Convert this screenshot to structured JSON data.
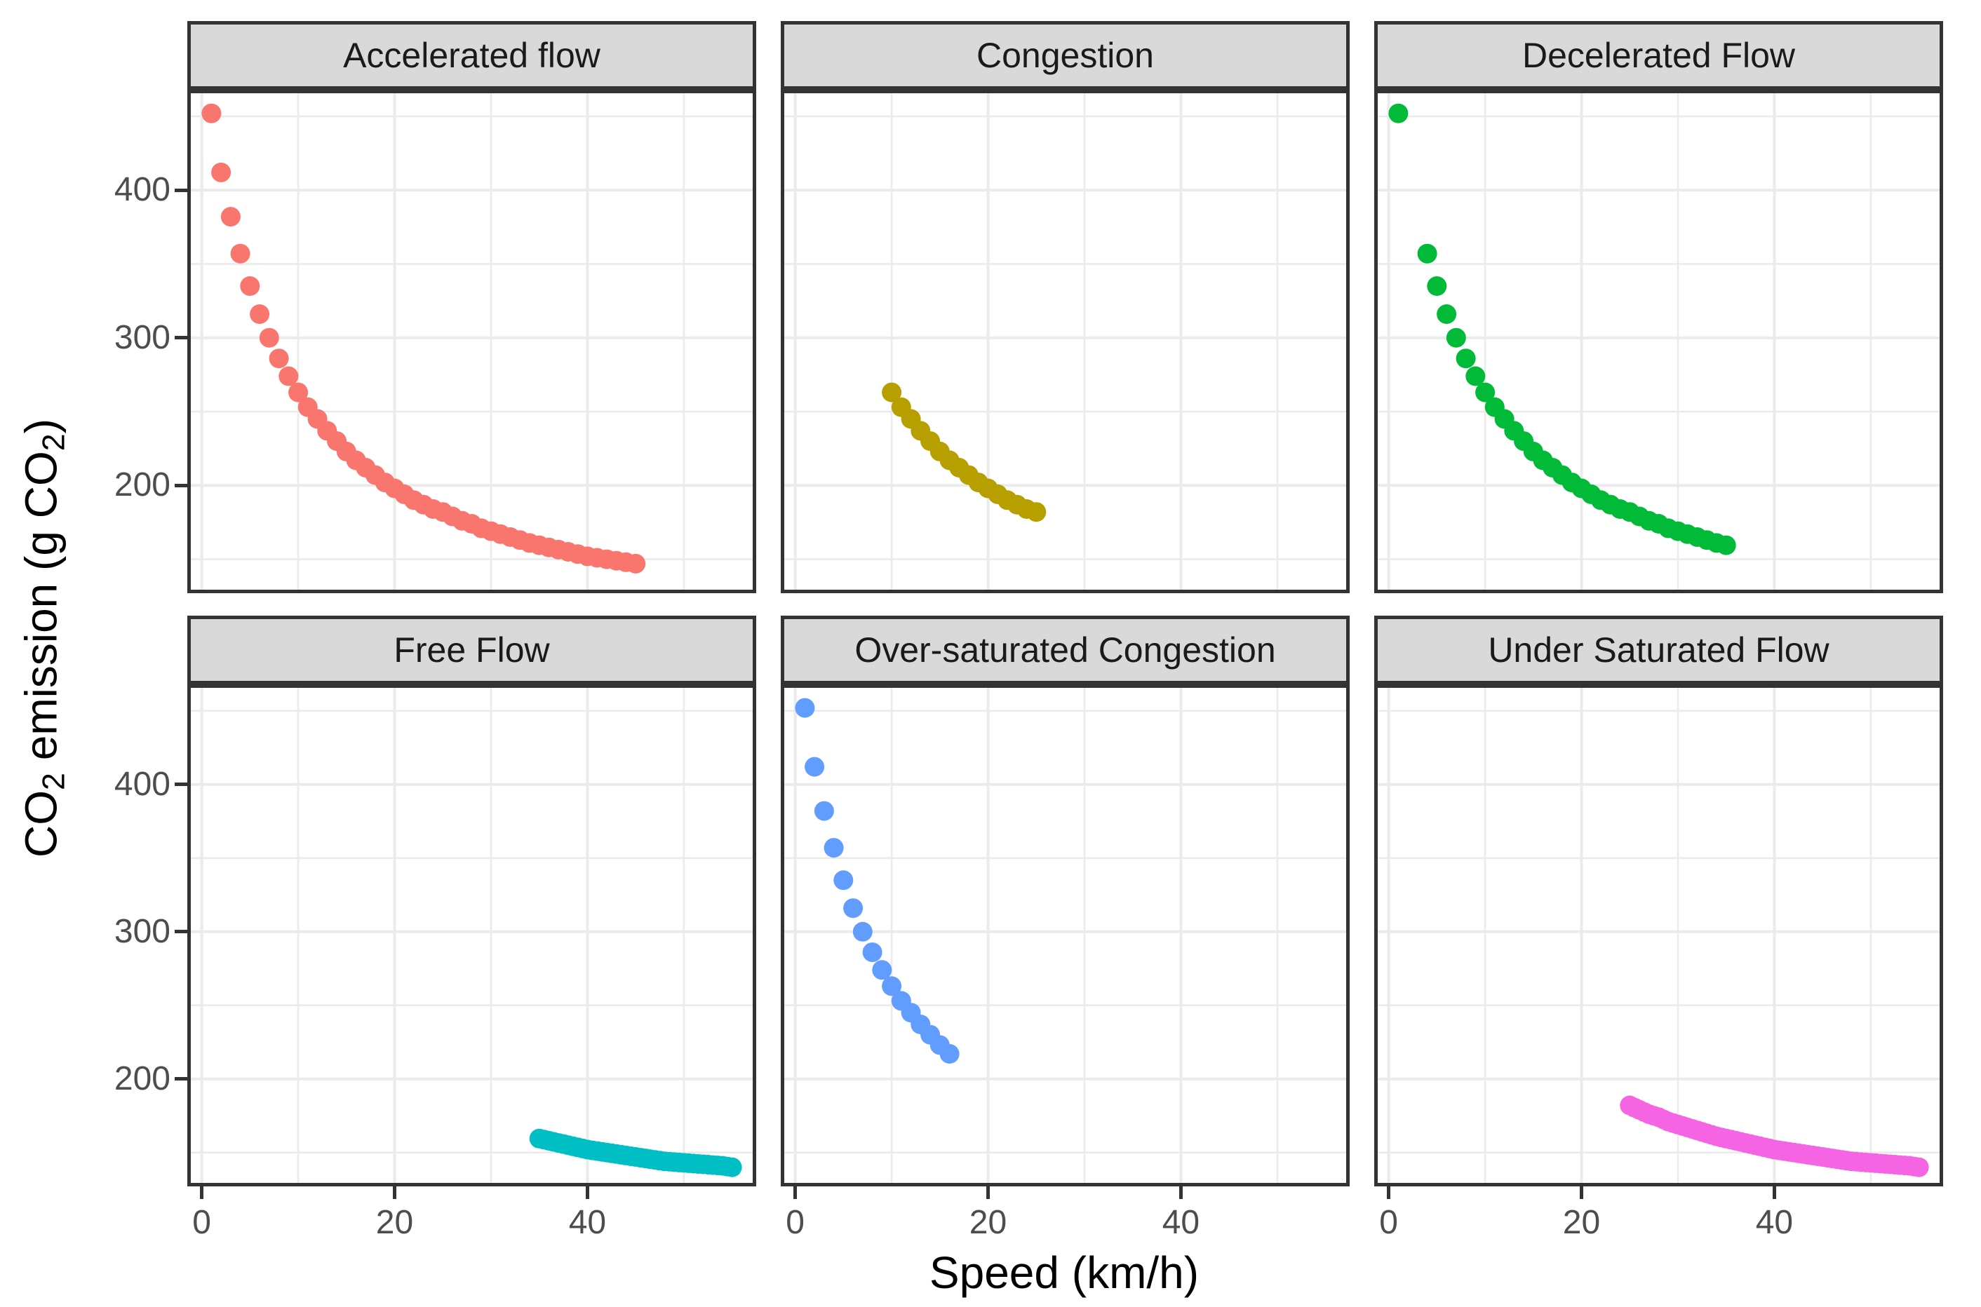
{
  "chart_data": {
    "type": "scatter",
    "title": "",
    "x_label": "Speed (km/h)",
    "y_label_parts": {
      "pre": "CO",
      "sub1": "2",
      "mid": " emission (g CO",
      "sub2": "2",
      "post": ")"
    },
    "x_ticks": [
      0,
      20,
      40
    ],
    "y_ticks": [
      200,
      300,
      400
    ],
    "x_minor": [
      10,
      30,
      50
    ],
    "y_minor": [
      150,
      250,
      350,
      450
    ],
    "x_domain": [
      -1.5,
      57.5
    ],
    "y_domain": [
      127,
      468
    ],
    "grid": true,
    "legend_position": "none",
    "point_radius_px": 14,
    "colors": {
      "panel_background": "#FFFFFF",
      "strip_background": "#D9D9D9",
      "grid": "#EBEBEB",
      "panel_border": "#333333",
      "tick_label": "#4D4D4D"
    },
    "facets": [
      {
        "label": "Accelerated flow",
        "color": "#F8766D",
        "v": [
          1,
          2,
          3,
          4,
          5,
          6,
          7,
          8,
          9,
          10,
          11,
          12,
          13,
          14,
          15,
          16,
          17,
          18,
          19,
          20,
          21,
          22,
          23,
          24,
          25,
          26,
          27,
          28,
          29,
          30,
          31,
          32,
          33,
          34,
          35,
          36,
          37,
          38,
          39,
          40,
          41,
          42,
          43,
          44,
          45
        ],
        "co2": [
          452,
          412,
          382,
          357,
          335,
          316,
          300,
          286,
          274,
          263,
          253,
          245,
          237,
          230,
          223,
          217,
          212,
          207,
          202,
          198,
          194,
          190,
          187,
          184,
          182,
          179,
          176,
          174,
          171,
          169,
          167,
          165,
          163,
          161,
          159.5,
          158,
          156.5,
          155,
          153.5,
          152,
          151,
          150,
          149,
          148,
          147
        ]
      },
      {
        "label": "Congestion",
        "color": "#B79F00",
        "v": [
          10,
          11,
          12,
          13,
          14,
          15,
          16,
          17,
          18,
          19,
          20,
          21,
          22,
          23,
          24,
          25
        ],
        "co2": [
          263,
          253,
          245,
          237,
          230,
          223,
          217,
          212,
          207,
          202,
          198,
          194,
          190,
          187,
          184,
          182
        ]
      },
      {
        "label": "Decelerated Flow",
        "color": "#00BA38",
        "v": [
          1,
          4,
          5,
          6,
          7,
          8,
          9,
          10,
          11,
          12,
          13,
          14,
          15,
          16,
          17,
          18,
          19,
          20,
          21,
          22,
          23,
          24,
          25,
          26,
          27,
          28,
          29,
          30,
          31,
          32,
          33,
          34,
          35
        ],
        "co2": [
          452,
          357,
          335,
          316,
          300,
          286,
          274,
          263,
          253,
          245,
          237,
          230,
          223,
          217,
          212,
          207,
          202,
          198,
          194,
          190,
          187,
          184,
          182,
          179,
          176,
          174,
          171,
          169,
          167,
          165,
          163,
          161,
          159.5
        ]
      },
      {
        "label": "Free Flow",
        "color": "#00BFC4",
        "v": [
          35,
          35.5,
          36,
          36.5,
          37,
          37.5,
          38,
          38.5,
          39,
          39.5,
          40,
          40.5,
          41,
          41.5,
          42,
          42.5,
          43,
          43.5,
          44,
          44.5,
          45,
          45.5,
          46,
          46.5,
          47,
          47.5,
          48,
          48.5,
          49,
          49.5,
          50,
          50.5,
          51,
          51.5,
          52,
          52.5,
          53,
          53.5,
          54,
          54.5,
          55
        ],
        "co2": [
          159.5,
          158.75,
          158,
          157.25,
          156.5,
          155.75,
          155,
          154.25,
          153.5,
          152.75,
          152,
          151.5,
          151,
          150.5,
          150,
          149.5,
          149,
          148.5,
          148,
          147.5,
          147,
          146.5,
          146,
          145.5,
          145,
          144.5,
          144,
          143.75,
          143.5,
          143.25,
          143,
          142.75,
          142.5,
          142.25,
          142,
          141.75,
          141.5,
          141.25,
          141,
          140.5,
          140
        ]
      },
      {
        "label": "Over-saturated Congestion",
        "color": "#619CFF",
        "v": [
          1,
          2,
          3,
          4,
          5,
          6,
          7,
          8,
          9,
          10,
          11,
          12,
          13,
          14,
          15,
          16
        ],
        "co2": [
          452,
          412,
          382,
          357,
          335,
          316,
          300,
          286,
          274,
          263,
          253,
          245,
          237,
          230,
          223,
          217
        ]
      },
      {
        "label": "Under Saturated Flow",
        "color": "#F564E3",
        "v": [
          25,
          25.5,
          26,
          26.5,
          27,
          27.5,
          28,
          28.5,
          29,
          29.5,
          30,
          30.5,
          31,
          31.5,
          32,
          32.5,
          33,
          33.5,
          34,
          34.5,
          35,
          35.5,
          36,
          36.5,
          37,
          37.5,
          38,
          38.5,
          39,
          39.5,
          40,
          40.5,
          41,
          41.5,
          42,
          42.5,
          43,
          43.5,
          44,
          44.5,
          45,
          45.5,
          46,
          46.5,
          47,
          47.5,
          48,
          48.5,
          49,
          49.5,
          50,
          50.5,
          51,
          51.5,
          52,
          52.5,
          53,
          53.5,
          54,
          54.5,
          55
        ],
        "co2": [
          182,
          180.5,
          179,
          177.5,
          176,
          175,
          174,
          172.5,
          171,
          170,
          169,
          168,
          167,
          166,
          165,
          164,
          163,
          162,
          161,
          160.25,
          159.5,
          158.75,
          158,
          157.25,
          156.5,
          155.75,
          155,
          154.25,
          153.5,
          152.75,
          152,
          151.5,
          151,
          150.5,
          150,
          149.5,
          149,
          148.5,
          148,
          147.5,
          147,
          146.5,
          146,
          145.5,
          145,
          144.5,
          144,
          143.75,
          143.5,
          143.25,
          143,
          142.75,
          142.5,
          142.25,
          142,
          141.75,
          141.5,
          141.25,
          141,
          140.5,
          140
        ]
      }
    ]
  }
}
